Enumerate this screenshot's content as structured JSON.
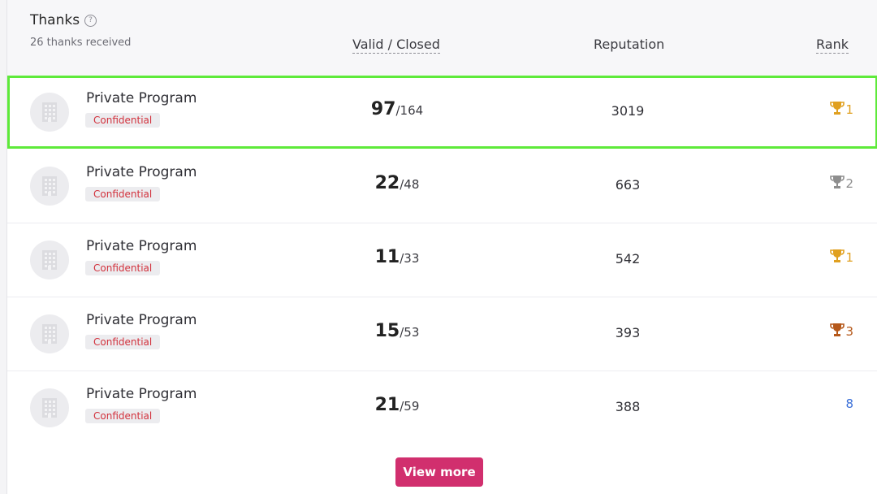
{
  "header": {
    "title": "Thanks",
    "help_icon": "question-circle-icon",
    "subtitle": "26 thanks received",
    "columns": {
      "valid_closed": "Valid / Closed",
      "reputation": "Reputation",
      "rank": "Rank"
    }
  },
  "rows": [
    {
      "name": "Private Program",
      "badge": "Confidential",
      "valid": "97",
      "closed": "/164",
      "reputation": "3019",
      "rank": "1",
      "rank_icon": "trophy-gold-icon",
      "rank_color": "#e0a020",
      "highlighted": true
    },
    {
      "name": "Private Program",
      "badge": "Confidential",
      "valid": "22",
      "closed": "/48",
      "reputation": "663",
      "rank": "2",
      "rank_icon": "trophy-silver-icon",
      "rank_color": "#8e8e8e",
      "highlighted": false
    },
    {
      "name": "Private Program",
      "badge": "Confidential",
      "valid": "11",
      "closed": "/33",
      "reputation": "542",
      "rank": "1",
      "rank_icon": "trophy-gold-icon",
      "rank_color": "#e0a020",
      "highlighted": false
    },
    {
      "name": "Private Program",
      "badge": "Confidential",
      "valid": "15",
      "closed": "/53",
      "reputation": "393",
      "rank": "3",
      "rank_icon": "trophy-bronze-icon",
      "rank_color": "#b5581a",
      "highlighted": false
    },
    {
      "name": "Private Program",
      "badge": "Confidential",
      "valid": "21",
      "closed": "/59",
      "reputation": "388",
      "rank": "8",
      "rank_icon": "",
      "rank_color": "#3a6fd8",
      "highlighted": false
    }
  ],
  "footer": {
    "view_more_label": "View more"
  },
  "colors": {
    "accent_button": "#d12f6e",
    "highlight_outline": "#5eea3a",
    "badge_text": "#d2323d"
  }
}
